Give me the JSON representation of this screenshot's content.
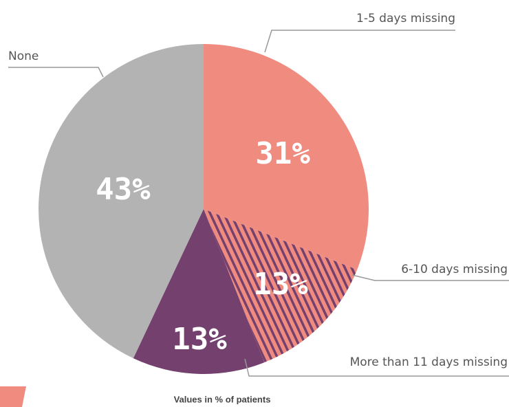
{
  "chart_data": {
    "type": "pie",
    "categories": [
      "1-5 days missing",
      "6-10 days missing",
      "More than 11 days missing",
      "None"
    ],
    "values": [
      31,
      13,
      13,
      43
    ],
    "value_labels": [
      "31%",
      "13%",
      "13%",
      "43%"
    ],
    "colors": [
      "#f08b80",
      "#f08b80",
      "#74406e",
      "#b3b3b3"
    ],
    "hatch": [
      false,
      true,
      false,
      false
    ],
    "note": "Values in % of patients"
  }
}
